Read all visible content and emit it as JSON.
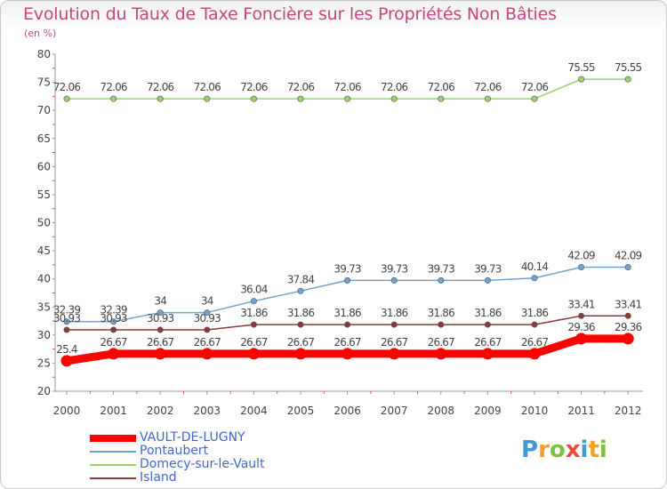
{
  "chart_data": {
    "type": "line",
    "title": "Evolution du Taux de Taxe Foncière sur les Propriétés Non Bâties",
    "subtitle": "(en %)",
    "xlabel": "",
    "ylabel": "",
    "ylim": [
      20,
      80
    ],
    "yticks": [
      "20",
      "25",
      "30",
      "35",
      "40",
      "45",
      "50",
      "55",
      "60",
      "65",
      "70",
      "75",
      "80"
    ],
    "x": [
      "2000",
      "2001",
      "2002",
      "2003",
      "2004",
      "2005",
      "2006",
      "2007",
      "2008",
      "2009",
      "2010",
      "2011",
      "2012"
    ],
    "grid": false,
    "legend_position": "bottom-left",
    "series": [
      {
        "name": "VAULT-DE-LUGNY",
        "color": "#ff0000",
        "values": [
          25.4,
          26.67,
          26.67,
          26.67,
          26.67,
          26.67,
          26.67,
          26.67,
          26.67,
          26.67,
          26.67,
          29.36,
          29.36
        ],
        "labels": [
          "25.4",
          "26.67",
          "26.67",
          "26.67",
          "26.67",
          "26.67",
          "26.67",
          "26.67",
          "26.67",
          "26.67",
          "26.67",
          "29.36",
          "29.36"
        ]
      },
      {
        "name": "Pontaubert",
        "color": "#6fa3d0",
        "values": [
          32.39,
          32.39,
          34,
          34,
          36.04,
          37.84,
          39.73,
          39.73,
          39.73,
          39.73,
          40.14,
          42.09,
          42.09
        ],
        "labels": [
          "32.39",
          "32.39",
          "34",
          "34",
          "36.04",
          "37.84",
          "39.73",
          "39.73",
          "39.73",
          "39.73",
          "40.14",
          "42.09",
          "42.09"
        ]
      },
      {
        "name": "Domecy-sur-le-Vault",
        "color": "#99d36a",
        "values": [
          72.06,
          72.06,
          72.06,
          72.06,
          72.06,
          72.06,
          72.06,
          72.06,
          72.06,
          72.06,
          72.06,
          75.55,
          75.55
        ],
        "labels": [
          "72.06",
          "72.06",
          "72.06",
          "72.06",
          "72.06",
          "72.06",
          "72.06",
          "72.06",
          "72.06",
          "72.06",
          "72.06",
          "75.55",
          "75.55"
        ]
      },
      {
        "name": "Island",
        "color": "#8b3a3a",
        "values": [
          30.93,
          30.93,
          30.93,
          30.93,
          31.86,
          31.86,
          31.86,
          31.86,
          31.86,
          31.86,
          31.86,
          33.41,
          33.41
        ],
        "labels": [
          "30.93",
          "30.93",
          "30.93",
          "30.93",
          "31.86",
          "31.86",
          "31.86",
          "31.86",
          "31.86",
          "31.86",
          "31.86",
          "33.41",
          "33.41"
        ]
      }
    ]
  },
  "logo": {
    "letters": [
      "P",
      "r",
      "o",
      "x",
      "i",
      "t",
      "i"
    ],
    "alt": "Proxiti"
  }
}
